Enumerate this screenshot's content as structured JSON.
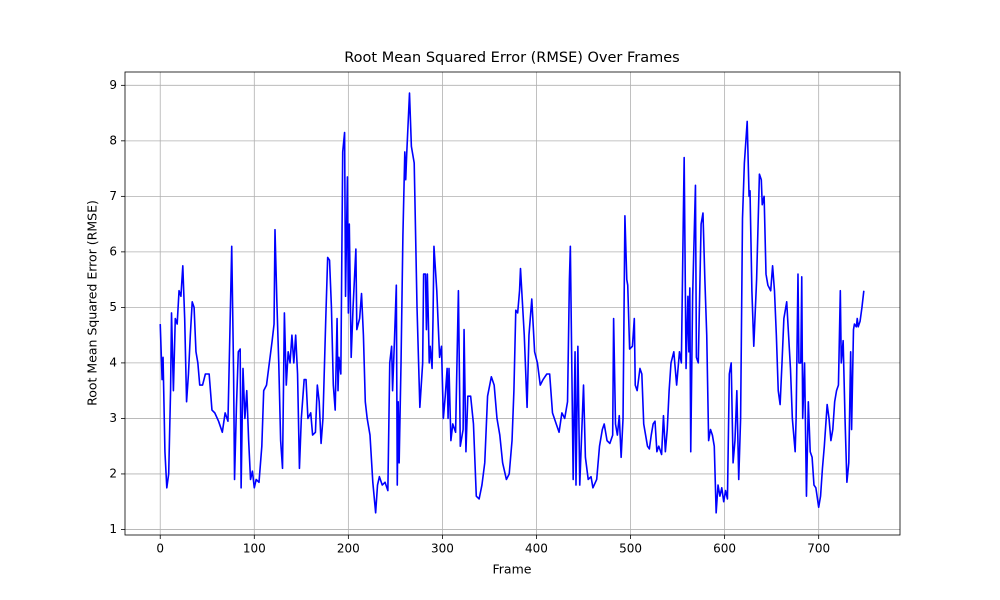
{
  "chart_data": {
    "type": "line",
    "title": "Root Mean Squared Error (RMSE) Over Frames",
    "xlabel": "Frame",
    "ylabel": "Root Mean Squared Error (RMSE)",
    "color": "#0000ff",
    "grid": true,
    "xlim": [
      -37.45,
      786.45
    ],
    "ylim": [
      0.9,
      9.24
    ],
    "xticks": [
      0,
      100,
      200,
      300,
      400,
      500,
      600,
      700
    ],
    "yticks": [
      1,
      2,
      3,
      4,
      5,
      6,
      7,
      8,
      9
    ],
    "x": [
      0,
      2,
      3,
      5,
      7,
      9,
      11,
      12,
      14,
      16,
      18,
      20,
      22,
      24,
      26,
      28,
      30,
      32,
      34,
      36,
      38,
      40,
      42,
      45,
      48,
      52,
      55,
      58,
      62,
      66,
      69,
      72,
      74,
      76,
      78,
      79,
      81,
      83,
      85,
      86,
      88,
      90,
      92,
      94,
      96,
      98,
      100,
      102,
      105,
      108,
      110,
      113,
      116,
      119,
      121,
      122,
      124,
      126,
      128,
      130,
      132,
      134,
      136,
      138,
      140,
      142,
      144,
      146,
      148,
      150,
      153,
      155,
      157,
      160,
      162,
      165,
      167,
      169,
      171,
      173,
      176,
      178,
      180,
      182,
      184,
      186,
      188,
      189,
      190,
      192,
      194,
      196,
      197,
      199,
      200,
      201,
      203,
      205,
      208,
      209,
      212,
      214,
      216,
      218,
      220,
      223,
      226,
      229,
      231,
      233,
      236,
      239,
      242,
      244,
      246,
      247,
      249,
      251,
      252,
      253,
      254,
      256,
      258,
      260,
      261,
      262,
      265,
      267,
      270,
      273,
      276,
      279,
      280,
      282,
      283,
      284,
      286,
      287,
      289,
      290,
      291,
      294,
      297,
      299,
      301,
      303,
      305,
      306,
      307,
      309,
      311,
      314,
      317,
      319,
      322,
      323,
      325,
      327,
      330,
      333,
      336,
      339,
      342,
      345,
      348,
      352,
      355,
      358,
      361,
      364,
      368,
      371,
      374,
      376,
      378,
      380,
      382,
      383,
      387,
      390,
      392,
      395,
      398,
      401,
      404,
      407,
      411,
      414,
      417,
      421,
      424,
      427,
      430,
      433,
      435,
      436,
      439,
      441,
      442,
      444,
      446,
      450,
      452,
      455,
      458,
      460,
      464,
      467,
      470,
      472,
      475,
      478,
      481,
      482,
      484,
      486,
      488,
      490,
      492,
      494,
      496,
      497,
      499,
      502,
      504,
      505,
      507,
      510,
      512,
      514,
      516,
      518,
      520,
      522,
      524,
      526,
      528,
      530,
      533,
      535,
      537,
      539,
      541,
      543,
      546,
      549,
      552,
      554,
      556,
      557,
      559,
      561,
      562,
      563,
      564,
      566,
      569,
      570,
      572,
      575,
      577,
      579,
      581,
      583,
      585,
      587,
      589,
      591,
      593,
      595,
      597,
      599,
      601,
      603,
      605,
      607,
      609,
      611,
      613,
      615,
      617,
      619,
      621,
      624,
      626,
      627,
      629,
      631,
      634,
      637,
      639,
      640,
      642,
      644,
      646,
      649,
      651,
      653,
      655,
      657,
      659,
      661,
      663,
      666,
      668,
      670,
      672,
      674,
      675,
      676,
      678,
      679,
      681,
      682,
      683,
      685,
      687,
      689,
      691,
      693,
      695,
      697,
      700,
      702,
      704,
      706,
      709,
      711,
      713,
      715,
      717,
      719,
      721,
      723,
      724,
      726,
      728,
      730,
      732,
      734,
      735,
      737,
      738,
      740,
      741,
      742,
      744,
      746,
      748
    ],
    "values": [
      4.7,
      3.7,
      4.1,
      2.4,
      1.75,
      2.0,
      3.5,
      4.9,
      3.5,
      4.8,
      4.7,
      5.3,
      5.2,
      5.75,
      4.8,
      3.3,
      3.8,
      4.5,
      5.1,
      5.0,
      4.2,
      4.0,
      3.6,
      3.6,
      3.8,
      3.8,
      3.15,
      3.1,
      2.95,
      2.75,
      3.1,
      2.95,
      4.5,
      6.1,
      3.8,
      1.9,
      3.2,
      4.2,
      4.25,
      1.75,
      3.9,
      3.0,
      3.5,
      2.6,
      1.9,
      2.05,
      1.75,
      1.9,
      1.85,
      2.5,
      3.5,
      3.6,
      4.0,
      4.4,
      4.7,
      6.4,
      5.1,
      4.0,
      2.6,
      2.1,
      4.9,
      3.6,
      4.2,
      4.0,
      4.5,
      4.0,
      4.5,
      3.8,
      2.1,
      3.0,
      3.7,
      3.7,
      3.0,
      3.1,
      2.7,
      2.75,
      3.6,
      3.3,
      2.55,
      3.0,
      4.8,
      5.9,
      5.85,
      5.0,
      3.6,
      3.15,
      4.8,
      3.5,
      4.1,
      3.8,
      7.8,
      8.15,
      5.2,
      7.35,
      4.9,
      6.5,
      4.1,
      5.0,
      6.05,
      4.6,
      4.8,
      5.25,
      4.5,
      3.3,
      3.0,
      2.7,
      1.85,
      1.3,
      1.8,
      1.95,
      1.8,
      1.85,
      1.7,
      4.0,
      4.3,
      3.5,
      4.4,
      5.4,
      1.8,
      3.3,
      2.2,
      4.0,
      6.3,
      7.8,
      7.3,
      7.75,
      8.86,
      7.9,
      7.6,
      5.0,
      3.2,
      4.0,
      5.6,
      5.6,
      4.6,
      5.6,
      4.0,
      4.3,
      3.9,
      4.8,
      6.1,
      5.3,
      4.1,
      4.3,
      3.0,
      3.4,
      3.9,
      3.0,
      3.9,
      2.6,
      2.9,
      2.75,
      5.3,
      2.5,
      2.8,
      4.6,
      2.4,
      3.4,
      3.4,
      2.9,
      1.6,
      1.55,
      1.8,
      2.2,
      3.4,
      3.75,
      3.6,
      3.0,
      2.7,
      2.2,
      1.9,
      2.0,
      2.6,
      3.5,
      4.95,
      4.9,
      5.3,
      5.7,
      4.5,
      3.2,
      4.5,
      5.15,
      4.2,
      4.0,
      3.6,
      3.7,
      3.8,
      3.8,
      3.1,
      2.9,
      2.75,
      3.1,
      3.0,
      3.3,
      5.5,
      6.1,
      1.9,
      4.2,
      1.8,
      4.3,
      1.8,
      3.6,
      2.3,
      1.9,
      1.95,
      1.75,
      1.9,
      2.5,
      2.8,
      2.9,
      2.6,
      2.55,
      2.7,
      4.8,
      2.9,
      2.7,
      3.05,
      2.3,
      3.0,
      6.65,
      5.5,
      5.4,
      4.25,
      4.3,
      4.8,
      3.6,
      3.5,
      3.9,
      3.8,
      2.9,
      2.7,
      2.5,
      2.45,
      2.7,
      2.9,
      2.95,
      2.4,
      2.5,
      2.35,
      3.05,
      2.4,
      2.8,
      3.5,
      4.0,
      4.2,
      3.6,
      4.2,
      4.0,
      6.5,
      7.7,
      3.9,
      5.2,
      4.2,
      5.35,
      2.4,
      5.2,
      7.2,
      4.1,
      4.0,
      6.5,
      6.7,
      5.5,
      4.5,
      2.6,
      2.8,
      2.7,
      2.5,
      1.3,
      1.8,
      1.6,
      1.75,
      1.5,
      1.7,
      1.55,
      3.8,
      4.0,
      2.2,
      2.6,
      3.5,
      1.9,
      3.0,
      6.6,
      7.6,
      8.35,
      7.0,
      7.1,
      5.3,
      4.3,
      5.5,
      7.4,
      7.3,
      6.85,
      7.0,
      5.6,
      5.4,
      5.3,
      5.75,
      5.3,
      4.5,
      3.5,
      3.25,
      4.0,
      4.8,
      5.1,
      4.5,
      3.9,
      3.0,
      2.6,
      2.4,
      3.0,
      5.6,
      4.0,
      4.0,
      5.55,
      3.0,
      4.0,
      1.6,
      3.3,
      2.4,
      2.3,
      1.8,
      1.75,
      1.4,
      1.6,
      2.1,
      2.5,
      3.25,
      3.0,
      2.6,
      2.8,
      3.3,
      3.5,
      3.6,
      5.3,
      4.0,
      4.4,
      3.0,
      1.85,
      2.2,
      4.2,
      2.8,
      4.6,
      4.7,
      4.65,
      4.8,
      4.65,
      4.75,
      5.0,
      5.3
    ]
  }
}
